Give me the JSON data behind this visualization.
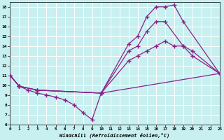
{
  "xlabel": "Windchill (Refroidissement éolien,°C)",
  "bg_color": "#c8f0f0",
  "line_color": "#882288",
  "grid_color": "#ffffff",
  "xlim": [
    0,
    23
  ],
  "ylim": [
    6,
    18.5
  ],
  "yticks": [
    6,
    7,
    8,
    9,
    10,
    11,
    12,
    13,
    14,
    15,
    16,
    17,
    18
  ],
  "xticks": [
    0,
    1,
    2,
    3,
    4,
    5,
    6,
    7,
    8,
    9,
    10,
    11,
    12,
    13,
    14,
    15,
    16,
    17,
    18,
    19,
    20,
    21,
    22,
    23
  ],
  "lines": [
    {
      "x": [
        0,
        1,
        3,
        10,
        13,
        14,
        15,
        16,
        17,
        18,
        19,
        23
      ],
      "y": [
        11,
        9.9,
        9.5,
        9.2,
        14.2,
        15.0,
        17.0,
        18.0,
        18.0,
        18.2,
        16.5,
        11.2
      ]
    },
    {
      "x": [
        0,
        1,
        3,
        10,
        13,
        14,
        15,
        16,
        17,
        19,
        20,
        23
      ],
      "y": [
        11,
        9.9,
        9.5,
        9.2,
        13.5,
        14.0,
        15.5,
        16.5,
        16.5,
        14.0,
        13.0,
        11.2
      ]
    },
    {
      "x": [
        0,
        1,
        3,
        10,
        13,
        14,
        15,
        16,
        17,
        18,
        19,
        20,
        23
      ],
      "y": [
        11,
        9.9,
        9.5,
        9.2,
        12.5,
        13.0,
        13.5,
        14.0,
        14.5,
        14.0,
        14.0,
        13.5,
        11.2
      ]
    },
    {
      "x": [
        0,
        1,
        2,
        3,
        4,
        5,
        6,
        7,
        8,
        9,
        10,
        23
      ],
      "y": [
        11,
        9.9,
        9.5,
        9.2,
        9.0,
        8.8,
        8.5,
        8.0,
        7.2,
        6.5,
        9.2,
        11.2
      ]
    }
  ]
}
